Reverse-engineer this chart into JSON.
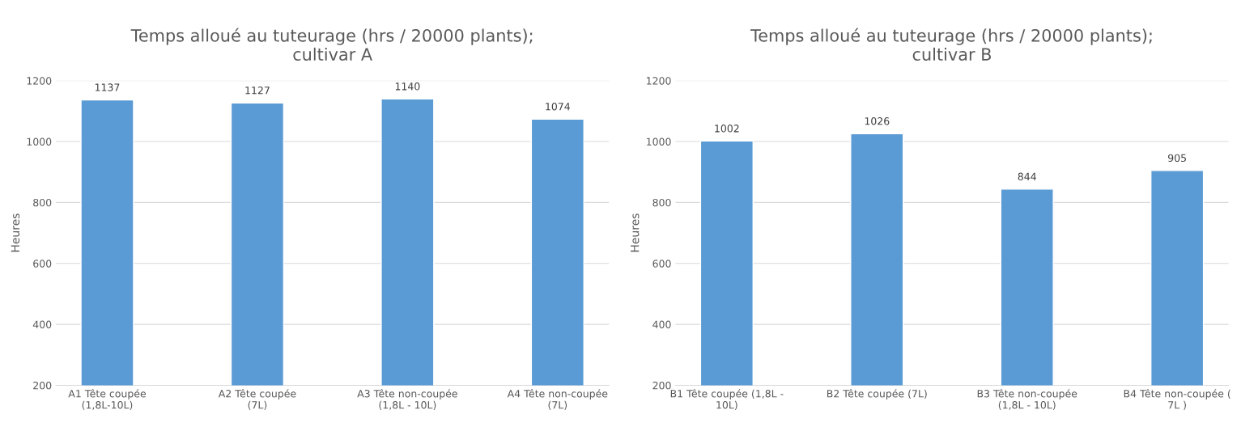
{
  "chart_data": [
    {
      "type": "bar",
      "title": "Temps alloué au tuteurage (hrs / 20000 plants);\ncultivar A",
      "ylabel": "Heures",
      "categories": [
        "A1 Tête coupée\n(1,8L-10L)",
        "A2 Tête coupée\n(7L)",
        "A3 Tête non-coupée\n(1,8L - 10L)",
        "A4 Tête non-coupée\n(7L)"
      ],
      "values": [
        1137,
        1127,
        1140,
        1074
      ],
      "color": "#5b9bd5",
      "data_labels": true,
      "ylim": [
        200,
        1200
      ],
      "yticks": [
        200,
        400,
        600,
        800,
        1000,
        1200
      ],
      "grid": "y"
    },
    {
      "type": "bar",
      "title": "Temps alloué au tuteurage (hrs / 20000 plants);\ncultivar B",
      "ylabel": "Heures",
      "categories": [
        "B1 Tête coupée (1,8L -\n10L)",
        "B2 Tête coupée (7L)",
        "B3 Tête non-coupée\n(1,8L - 10L)",
        "B4 Tête non-coupée (\n7L )"
      ],
      "values": [
        1002,
        1026,
        844,
        905
      ],
      "color": "#5b9bd5",
      "data_labels": true,
      "ylim": [
        200,
        1200
      ],
      "yticks": [
        200,
        400,
        600,
        800,
        1000,
        1200
      ],
      "grid": "y"
    }
  ]
}
